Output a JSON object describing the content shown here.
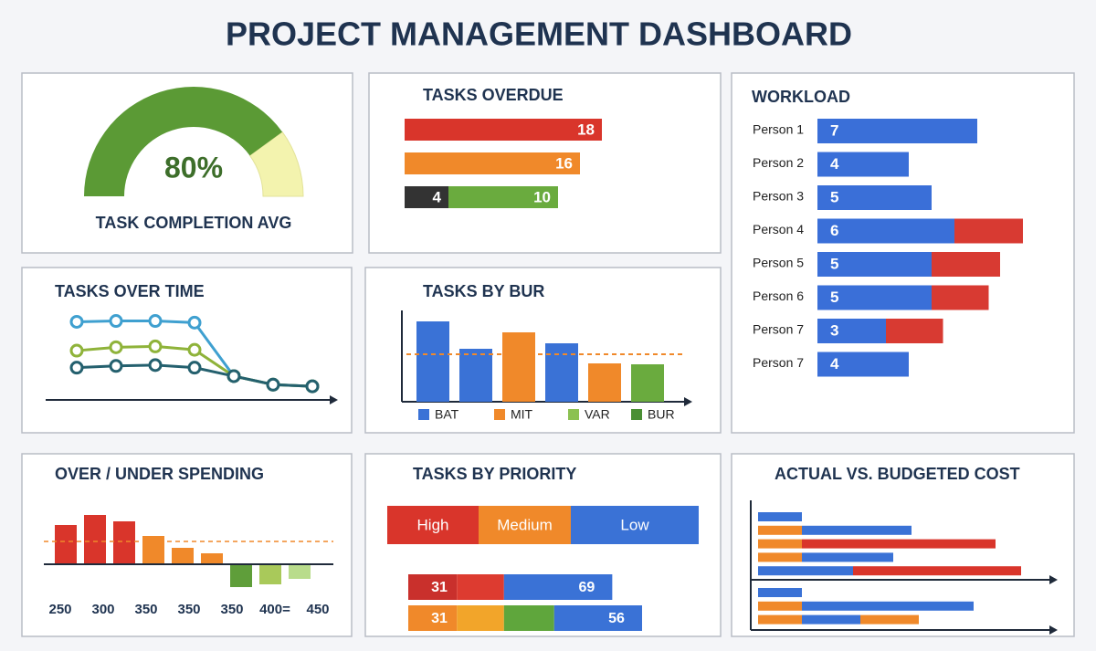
{
  "title": "PROJECT MANAGEMENT DASHBOARD",
  "chart_data": [
    {
      "type": "gauge",
      "title": "TASK COMPLETION AVG",
      "value": 80,
      "value_label": "80%",
      "color": "#5b9a35",
      "track_color": "#f3f3ae"
    },
    {
      "type": "stacked-hbar",
      "title": "TASKS OVERDUE",
      "rows": [
        [
          {
            "value": 18,
            "color": "#d9352b"
          }
        ],
        [
          {
            "value": 16,
            "color": "#f0892a"
          }
        ],
        [
          {
            "value": 4,
            "color": "#333333"
          },
          {
            "value": 10,
            "color": "#6aab3e"
          }
        ]
      ]
    },
    {
      "type": "workload",
      "title": "WORKLOAD",
      "categories": [
        "Person 1",
        "Person 2",
        "Person 3",
        "Person 4",
        "Person 5",
        "Person 6",
        "Person 7",
        "Person 7"
      ],
      "series": [
        {
          "color": "#3a6fd8",
          "values": [
            7,
            4,
            5,
            6,
            5,
            5,
            3,
            4
          ]
        },
        {
          "color": "#d83a32",
          "values": [
            null,
            null,
            null,
            3,
            3,
            2.5,
            2.5,
            null
          ]
        }
      ]
    },
    {
      "type": "line",
      "title": "TASKS OVER TIME",
      "ylim": [
        0,
        10
      ],
      "series": [
        {
          "color": "#3fa0d0",
          "values": [
            9.2,
            9.3,
            9.3,
            9.1,
            2.8,
            1.8,
            1.6
          ]
        },
        {
          "color": "#8fb33a",
          "values": [
            5.8,
            6.2,
            6.3,
            5.9,
            2.8,
            1.8,
            1.6
          ]
        },
        {
          "color": "#24606e",
          "values": [
            3.8,
            4.0,
            4.1,
            3.8,
            2.8,
            1.8,
            1.6
          ]
        }
      ]
    },
    {
      "type": "bar",
      "title": "TASKS BY BUR",
      "categories": [
        null,
        null,
        null,
        null,
        null,
        null
      ],
      "values": [
        8.8,
        5.8,
        7.6,
        6.4,
        4.2,
        4.1
      ],
      "colors": [
        "#3a72d6",
        "#3a72d6",
        "#f0892a",
        "#3a72d6",
        "#f0892a",
        "#6aab3e"
      ],
      "reference": 5.2,
      "reference_color": "#f0892a",
      "legend": [
        {
          "name": "BAT",
          "color": "#3a72d6"
        },
        {
          "name": "MIT",
          "color": "#f0892a"
        },
        {
          "name": "VAR",
          "color": "#8cc152"
        },
        {
          "name": "BUR",
          "color": "#4a8f35"
        }
      ]
    },
    {
      "type": "spending",
      "title": "OVER / UNDER SPENDING",
      "values": [
        43,
        54,
        47,
        31,
        18,
        12,
        -25,
        -22,
        -16
      ],
      "colors": [
        "#d9352b",
        "#d9352b",
        "#d9352b",
        "#f0892a",
        "#f0892a",
        "#f0892a",
        "#5f9e3a",
        "#a9c95a",
        "#b9dc8c"
      ],
      "reference": 25,
      "reference_color": "#f0892a",
      "x_labels": [
        "250",
        "300",
        "350",
        "350",
        "350",
        "400=",
        "450"
      ]
    },
    {
      "type": "priority",
      "title": "TASKS BY PRIORITY",
      "levels": [
        {
          "name": "High",
          "color": "#d9352b"
        },
        {
          "name": "Medium",
          "color": "#f0892a"
        },
        {
          "name": "Low",
          "color": "#3a72d6"
        }
      ],
      "rows": [
        [
          {
            "value": 31,
            "color": "#c9302c"
          },
          {
            "value": 30,
            "color": "#dd3b30"
          },
          {
            "value": 69,
            "color": "#3a72d6"
          }
        ],
        [
          {
            "value": 31,
            "color": "#f0892a"
          },
          {
            "value": 30,
            "color": "#f2a52a"
          },
          {
            "value": 32,
            "color": "#5fa63c"
          },
          {
            "value": 56,
            "color": "#3a72d6"
          }
        ]
      ]
    },
    {
      "type": "cost",
      "title": "ACTUAL VS. BUDGETED COST",
      "groups": [
        [
          [
            {
              "value": 12,
              "color": "#3a72d6"
            }
          ],
          [
            {
              "value": 12,
              "color": "#f0892a"
            },
            {
              "value": 30,
              "color": "#3a72d6"
            }
          ],
          [
            {
              "value": 12,
              "color": "#f0892a"
            },
            {
              "value": 53,
              "color": "#d9352b"
            }
          ],
          [
            {
              "value": 12,
              "color": "#f0892a"
            },
            {
              "value": 25,
              "color": "#3a72d6"
            }
          ],
          [
            {
              "value": 26,
              "color": "#3a72d6"
            },
            {
              "value": 46,
              "color": "#d9352b"
            }
          ]
        ],
        [
          [
            {
              "value": 12,
              "color": "#3a72d6"
            }
          ],
          [
            {
              "value": 12,
              "color": "#f0892a"
            },
            {
              "value": 47,
              "color": "#3a72d6"
            }
          ],
          [
            {
              "value": 12,
              "color": "#f0892a"
            },
            {
              "value": 16,
              "color": "#3a72d6"
            },
            {
              "value": 16,
              "color": "#f0892a"
            }
          ]
        ]
      ]
    }
  ]
}
